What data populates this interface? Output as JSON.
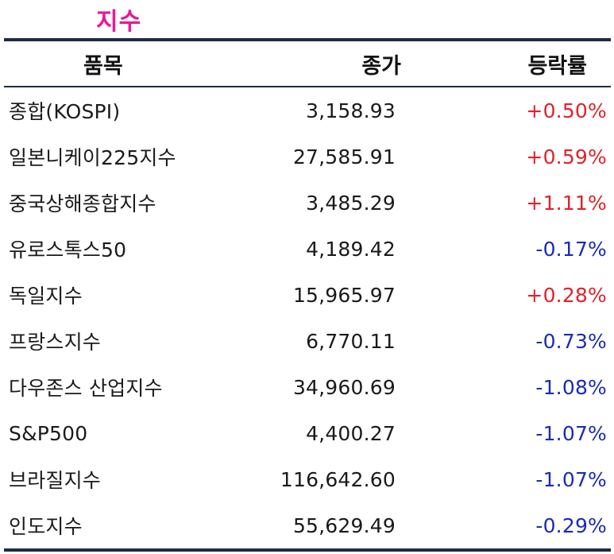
{
  "title": "지수",
  "headers": {
    "name": "품목",
    "price": "종가",
    "change": "등락률"
  },
  "colors": {
    "title": "#e6199a",
    "up": "#e0222a",
    "down": "#1b2bb5",
    "rule": "#1f2a4a"
  },
  "rows": [
    {
      "name": "종합(KOSPI)",
      "price": "3,158.93",
      "change": "+0.50%",
      "direction": "up"
    },
    {
      "name": "일본니케이225지수",
      "price": "27,585.91",
      "change": "+0.59%",
      "direction": "up"
    },
    {
      "name": "중국상해종합지수",
      "price": "3,485.29",
      "change": "+1.11%",
      "direction": "up"
    },
    {
      "name": "유로스톡스50",
      "price": "4,189.42",
      "change": "-0.17%",
      "direction": "down"
    },
    {
      "name": "독일지수",
      "price": "15,965.97",
      "change": "+0.28%",
      "direction": "up"
    },
    {
      "name": "프랑스지수",
      "price": "6,770.11",
      "change": "-0.73%",
      "direction": "down"
    },
    {
      "name": "다우존스 산업지수",
      "price": "34,960.69",
      "change": "-1.08%",
      "direction": "down"
    },
    {
      "name": "S&P500",
      "price": "4,400.27",
      "change": "-1.07%",
      "direction": "down"
    },
    {
      "name": "브라질지수",
      "price": "116,642.60",
      "change": "-1.07%",
      "direction": "down"
    },
    {
      "name": "인도지수",
      "price": "55,629.49",
      "change": "-0.29%",
      "direction": "down"
    }
  ]
}
